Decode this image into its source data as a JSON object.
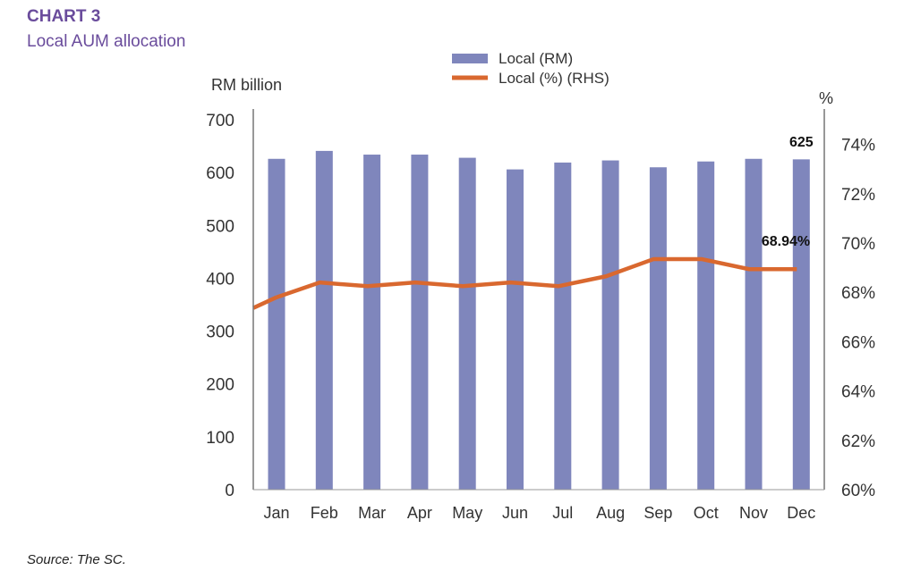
{
  "header": {
    "title": "CHART 3",
    "subtitle": "Local AUM allocation"
  },
  "source": "Source: The SC.",
  "chart_data": {
    "type": "bar+line",
    "categories": [
      "Jan",
      "Feb",
      "Mar",
      "Apr",
      "May",
      "Jun",
      "Jul",
      "Aug",
      "Sep",
      "Oct",
      "Nov",
      "Dec"
    ],
    "series": [
      {
        "name": "Local (RM)",
        "type": "bar",
        "axis": "left",
        "color": "#7f86bc",
        "values": [
          626,
          641,
          634,
          634,
          628,
          606,
          619,
          623,
          610,
          621,
          626,
          625
        ]
      },
      {
        "name": "Local (%) (RHS)",
        "type": "line",
        "axis": "right",
        "color": "#d9682f",
        "values": [
          67.8,
          68.4,
          68.25,
          68.4,
          68.25,
          68.4,
          68.25,
          68.65,
          69.35,
          69.35,
          68.94,
          68.94
        ]
      }
    ],
    "ylabel": "RM billion",
    "ylim": [
      0,
      700
    ],
    "yticks": [
      0,
      100,
      200,
      300,
      400,
      500,
      600,
      700
    ],
    "y2label": "%",
    "y2lim": [
      60,
      75
    ],
    "y2ticks": [
      "60%",
      "62%",
      "64%",
      "66%",
      "68%",
      "70%",
      "72%",
      "74%"
    ],
    "y2tick_values": [
      60,
      62,
      64,
      66,
      68,
      70,
      72,
      74
    ],
    "annotations": [
      "625",
      "68.94%"
    ],
    "legend_position": "top-center",
    "grid": false
  }
}
